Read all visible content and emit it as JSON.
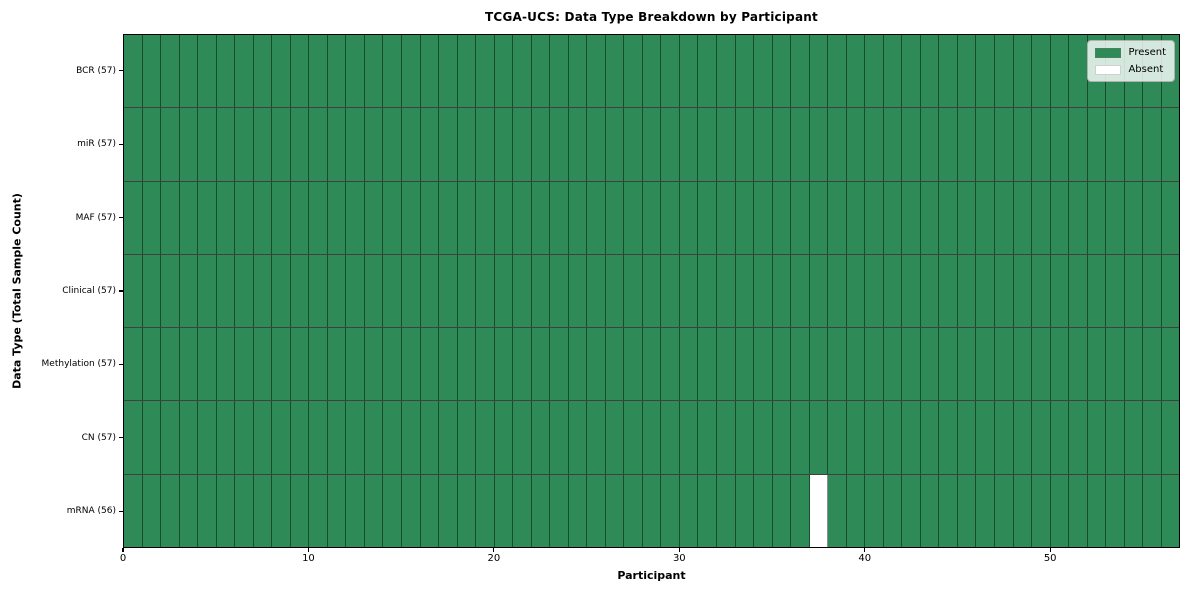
{
  "chart_data": {
    "type": "heatmap",
    "title": "TCGA-UCS: Data Type Breakdown by Participant",
    "xlabel": "Participant",
    "ylabel": "Data Type (Total Sample Count)",
    "n_participants": 57,
    "x_ticks": [
      0,
      10,
      20,
      30,
      40,
      50
    ],
    "rows": [
      {
        "label": "BCR (57)",
        "data_type": "BCR",
        "total_samples": 57,
        "absent_participants": []
      },
      {
        "label": "miR (57)",
        "data_type": "miR",
        "total_samples": 57,
        "absent_participants": []
      },
      {
        "label": "MAF (57)",
        "data_type": "MAF",
        "total_samples": 57,
        "absent_participants": []
      },
      {
        "label": "Clinical (57)",
        "data_type": "Clinical",
        "total_samples": 57,
        "absent_participants": []
      },
      {
        "label": "Methylation (57)",
        "data_type": "Methylation",
        "total_samples": 57,
        "absent_participants": []
      },
      {
        "label": "CN (57)",
        "data_type": "CN",
        "total_samples": 57,
        "absent_participants": []
      },
      {
        "label": "mRNA (56)",
        "data_type": "mRNA",
        "total_samples": 56,
        "absent_participants": [
          37
        ]
      }
    ],
    "legend": [
      {
        "label": "Present",
        "color": "#2e8b57"
      },
      {
        "label": "Absent",
        "color": "#ffffff"
      }
    ],
    "legend_position": "upper right",
    "grid": true,
    "colors": {
      "present": "#2e8b57",
      "absent": "#ffffff",
      "gridv": "rgba(0,0,0,0.45)",
      "gridh": "rgba(0,0,0,0.75)",
      "frame": "#000000",
      "legend_bg": "rgba(255,255,255,0.8)",
      "legend_border": "#b0b0b0"
    }
  }
}
